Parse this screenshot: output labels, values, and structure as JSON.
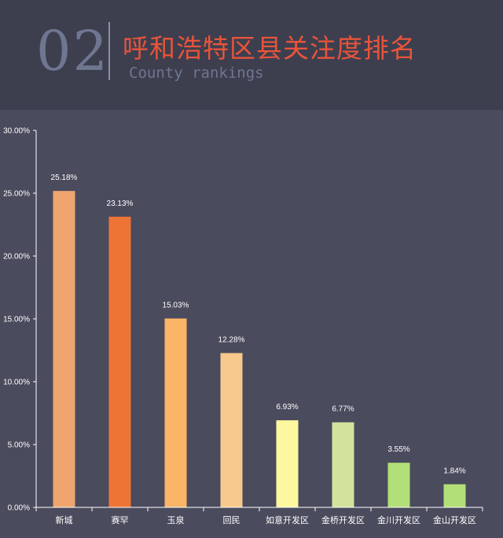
{
  "header": {
    "section_number": "02",
    "title": "呼和浩特区县关注度排名",
    "subtitle": "County rankings"
  },
  "colors": {
    "background": "#4a4b5d",
    "header_background": "#3d3f4f",
    "title": "#e8543a",
    "axis": "#ffffff"
  },
  "chart_data": {
    "type": "bar",
    "categories": [
      "新城",
      "赛罕",
      "玉泉",
      "回民",
      "如意开发区",
      "金桥开发区",
      "金川开发区",
      "金山开发区"
    ],
    "values": [
      25.18,
      23.13,
      15.03,
      12.28,
      6.93,
      6.77,
      3.55,
      1.84
    ],
    "data_labels": [
      "25.18%",
      "23.13%",
      "15.03%",
      "12.28%",
      "6.93%",
      "6.77%",
      "3.55%",
      "1.84%"
    ],
    "bar_colors": [
      "#eea56e",
      "#ee7436",
      "#fab566",
      "#f8c98c",
      "#fdf7a0",
      "#d2e49c",
      "#b3df78",
      "#b3df78"
    ],
    "yticks": [
      "0.00%",
      "5.00%",
      "10.00%",
      "15.00%",
      "20.00%",
      "25.00%",
      "30.00%"
    ],
    "ylim": [
      0,
      30
    ],
    "grid": false,
    "legend": "none"
  }
}
